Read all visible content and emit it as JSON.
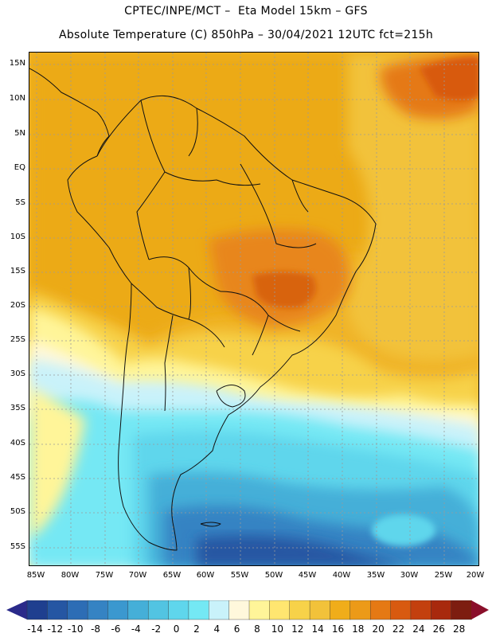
{
  "header": {
    "line1": "CPTEC/INPE/MCT –  Eta Model 15km – GFS",
    "line2": "Absolute Temperature (C) 850hPa – 30/04/2021 12UTC fct=215h"
  },
  "axes": {
    "lat_labels": [
      "15N",
      "10N",
      "5N",
      "EQ",
      "5S",
      "10S",
      "15S",
      "20S",
      "25S",
      "30S",
      "35S",
      "40S",
      "45S",
      "50S",
      "55S"
    ],
    "lon_labels": [
      "85W",
      "80W",
      "75W",
      "70W",
      "65W",
      "60W",
      "55W",
      "50W",
      "45W",
      "40W",
      "35W",
      "30W",
      "25W",
      "20W"
    ]
  },
  "colorbar": {
    "labels": [
      "-14",
      "-12",
      "-10",
      "-8",
      "-6",
      "-4",
      "-2",
      "0",
      "2",
      "4",
      "6",
      "8",
      "10",
      "12",
      "14",
      "16",
      "18",
      "20",
      "22",
      "24",
      "26",
      "28"
    ],
    "colors": [
      "#1f3f8f",
      "#2556a3",
      "#2d6db5",
      "#3583c3",
      "#3b98cf",
      "#45afd8",
      "#52c4e2",
      "#5fd6ec",
      "#74e8f4",
      "#c9f2fa",
      "#fff8dc",
      "#fff599",
      "#ffe670",
      "#f7d249",
      "#f2c23a",
      "#f0ad1a",
      "#ec9a18",
      "#e57914",
      "#d85a10",
      "#c3400e",
      "#a8290d",
      "#7d1d10"
    ],
    "low_arrow_color": "#2a2a8a",
    "high_arrow_color": "#8a0f2a"
  },
  "map": {
    "ocean_warm_color": "#f2bf3e",
    "land_color": "#f0ad1a",
    "coast_color": "#111111"
  }
}
